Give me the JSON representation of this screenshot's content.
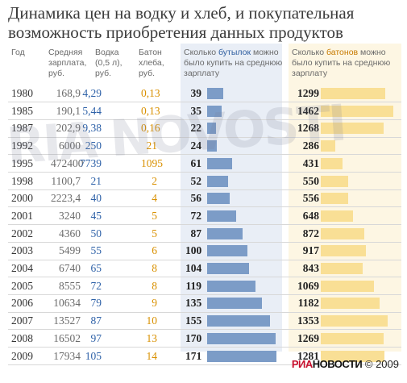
{
  "title": "Динамика цен на водку и хлеб, и покупательная возможность приобретения данных продуктов",
  "headers": {
    "year": "Год",
    "wage": "Средняя зарплата, руб.",
    "vodka": "Водка (0,5 л), руб.",
    "bread": "Батон хлеба, руб.",
    "bottles_pre": "Сколько ",
    "bottles_hl": "бутылок",
    "bottles_post": " можно было купить на среднюю зарплату",
    "loaves_pre": "Сколько ",
    "loaves_hl": "батонов",
    "loaves_post": " можно было купить на среднюю зарплату"
  },
  "watermark": "RIA NOVOSTI",
  "footer": {
    "brand_red": "РИА",
    "brand_rest": "НОВОСТИ",
    "copyright": "© 2009"
  },
  "colors": {
    "blue_bar": "#7c9cc7",
    "yellow_bar": "#f9df95",
    "vodka_text": "#2f62a8",
    "bread_text": "#d99000"
  },
  "chart_data": {
    "type": "table",
    "columns": [
      "Год",
      "Средняя зарплата, руб.",
      "Водка (0,5 л), руб.",
      "Батон хлеба, руб.",
      "Сколько бутылок можно было купить на среднюю зарплату",
      "Сколько батонов можно было купить на среднюю зарплату"
    ],
    "rows": [
      {
        "year": "1980",
        "wage": "168,9",
        "vodka": "4,29",
        "bread": "0,13",
        "bottles": 39,
        "loaves": 1299
      },
      {
        "year": "1985",
        "wage": "190,1",
        "vodka": "5,44",
        "bread": "0,13",
        "bottles": 35,
        "loaves": 1462
      },
      {
        "year": "1987",
        "wage": "202,9",
        "vodka": "9,38",
        "bread": "0,16",
        "bottles": 22,
        "loaves": 1268
      },
      {
        "year": "1992",
        "wage": "6000",
        "vodka": "250",
        "bread": "21",
        "bottles": 24,
        "loaves": 286
      },
      {
        "year": "1995",
        "wage": "472400",
        "vodka": "7739",
        "bread": "1095",
        "bottles": 61,
        "loaves": 431
      },
      {
        "year": "1998",
        "wage": "1100,7",
        "vodka": "21",
        "bread": "2",
        "bottles": 52,
        "loaves": 550
      },
      {
        "year": "2000",
        "wage": "2223,4",
        "vodka": "40",
        "bread": "4",
        "bottles": 56,
        "loaves": 556
      },
      {
        "year": "2001",
        "wage": "3240",
        "vodka": "45",
        "bread": "5",
        "bottles": 72,
        "loaves": 648
      },
      {
        "year": "2002",
        "wage": "4360",
        "vodka": "50",
        "bread": "5",
        "bottles": 87,
        "loaves": 872
      },
      {
        "year": "2003",
        "wage": "5499",
        "vodka": "55",
        "bread": "6",
        "bottles": 100,
        "loaves": 917
      },
      {
        "year": "2004",
        "wage": "6740",
        "vodka": "65",
        "bread": "8",
        "bottles": 104,
        "loaves": 843
      },
      {
        "year": "2005",
        "wage": "8555",
        "vodka": "72",
        "bread": "8",
        "bottles": 119,
        "loaves": 1069
      },
      {
        "year": "2006",
        "wage": "10634",
        "vodka": "79",
        "bread": "9",
        "bottles": 135,
        "loaves": 1182
      },
      {
        "year": "2007",
        "wage": "13527",
        "vodka": "87",
        "bread": "10",
        "bottles": 155,
        "loaves": 1353
      },
      {
        "year": "2008",
        "wage": "16502",
        "vodka": "97",
        "bread": "13",
        "bottles": 170,
        "loaves": 1269
      },
      {
        "year": "2009",
        "wage": "17934",
        "vodka": "105",
        "bread": "14",
        "bottles": 171,
        "loaves": 1281
      }
    ],
    "bottles_max": 171,
    "loaves_max": 1462
  }
}
